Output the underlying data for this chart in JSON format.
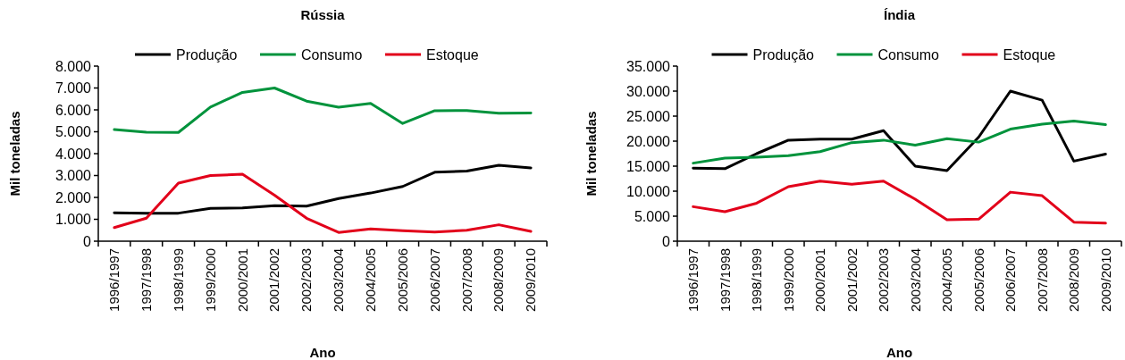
{
  "chart_data": [
    {
      "type": "line",
      "title": "Rússia",
      "xlabel": "Ano",
      "ylabel": "Mil toneladas",
      "legend": "top",
      "grid": false,
      "marker": "none",
      "line_style": "solid",
      "categories": [
        "1996/1997",
        "1997/1998",
        "1998/1999",
        "1999/2000",
        "2000/2001",
        "2001/2002",
        "2002/2003",
        "2003/2004",
        "2004/2005",
        "2005/2006",
        "2006/2007",
        "2007/2008",
        "2008/2009",
        "2009/2010"
      ],
      "ylim": [
        0,
        8000
      ],
      "yticks": [
        0,
        {
          "value": 1000,
          "label": "1.000"
        },
        {
          "value": 2000,
          "label": "2.000"
        },
        {
          "value": 3000,
          "label": "3.000"
        },
        {
          "value": 4000,
          "label": "4.000"
        },
        {
          "value": 5000,
          "label": "5.000"
        },
        {
          "value": 6000,
          "label": "6.000"
        },
        {
          "value": 7000,
          "label": "7.000"
        },
        {
          "value": 8000,
          "label": "8.000"
        }
      ],
      "series": [
        {
          "name": "Produção",
          "color": "#000000",
          "values": [
            1300,
            1280,
            1280,
            1500,
            1520,
            1620,
            1600,
            1950,
            2200,
            2500,
            3150,
            3200,
            3470,
            3350
          ]
        },
        {
          "name": "Consumo",
          "color": "#00933c",
          "values": [
            5100,
            4980,
            4970,
            6130,
            6800,
            7000,
            6400,
            6120,
            6300,
            5380,
            5960,
            5970,
            5850,
            5860
          ]
        },
        {
          "name": "Estoque",
          "color": "#e2001a",
          "values": [
            620,
            1050,
            2650,
            3000,
            3060,
            2100,
            1050,
            400,
            560,
            480,
            420,
            500,
            750,
            450
          ]
        }
      ]
    },
    {
      "type": "line",
      "title": "Índia",
      "xlabel": "Ano",
      "ylabel": "Mil toneladas",
      "legend": "top",
      "grid": false,
      "marker": "none",
      "line_style": "solid",
      "categories": [
        "1996/1997",
        "1997/1998",
        "1998/1999",
        "1999/2000",
        "2000/2001",
        "2001/2002",
        "2002/2003",
        "2003/2004",
        "2004/2005",
        "2005/2006",
        "2006/2007",
        "2007/2008",
        "2008/2009",
        "2009/2010"
      ],
      "ylim": [
        0,
        35000
      ],
      "yticks": [
        0,
        {
          "value": 5000,
          "label": "5.000"
        },
        {
          "value": 10000,
          "label": "10.000"
        },
        {
          "value": 15000,
          "label": "15.000"
        },
        {
          "value": 20000,
          "label": "20.000"
        },
        {
          "value": 25000,
          "label": "25.000"
        },
        {
          "value": 30000,
          "label": "30.000"
        },
        {
          "value": 35000,
          "label": "35.000"
        }
      ],
      "series": [
        {
          "name": "Produção",
          "color": "#000000",
          "values": [
            14600,
            14500,
            17500,
            20200,
            20400,
            20400,
            22100,
            15000,
            14100,
            20800,
            30000,
            28200,
            16000,
            17400
          ]
        },
        {
          "name": "Consumo",
          "color": "#00933c",
          "values": [
            15600,
            16600,
            16800,
            17100,
            17900,
            19700,
            20200,
            19200,
            20500,
            19800,
            22400,
            23400,
            24000,
            23300
          ]
        },
        {
          "name": "Estoque",
          "color": "#e2001a",
          "values": [
            6900,
            5900,
            7600,
            10900,
            12000,
            11400,
            12000,
            8400,
            4300,
            4400,
            9800,
            9100,
            3800,
            3600
          ]
        }
      ]
    }
  ]
}
